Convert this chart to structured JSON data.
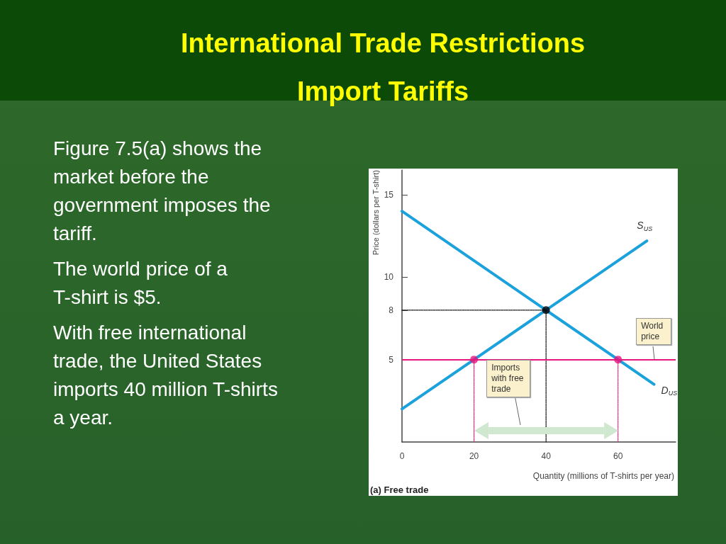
{
  "chart_data": {
    "type": "line",
    "title": "International Trade Restrictions",
    "subtitle": "Import Tariffs",
    "xlabel": "Quantity (millions of T-shirts per year)",
    "ylabel": "Price (dollars per T-shirt)",
    "xlim": [
      0,
      76
    ],
    "xticks": [
      0,
      20,
      40,
      60
    ],
    "ylim": [
      0,
      16.5
    ],
    "yticks": [
      5,
      8,
      10,
      15
    ],
    "marker": "none",
    "series": [
      {
        "name": "S$_{US}$",
        "color": "#1ba1dc",
        "x": [
          0,
          68
        ],
        "values": [
          2,
          12.2
        ]
      },
      {
        "name": "D$_{US}$",
        "color": "#1ba1dc",
        "x": [
          0,
          70
        ],
        "values": [
          14,
          3.5
        ]
      },
      {
        "color": "#e5177e",
        "line_style": "dotted",
        "x": [
          20,
          20
        ],
        "values": [
          0,
          5
        ]
      },
      {
        "color": "#e5177e",
        "line_style": "dotted",
        "x": [
          60,
          60
        ],
        "values": [
          0,
          5
        ]
      },
      {
        "color": "#000000",
        "line_style": "dotted",
        "x": [
          40,
          40
        ],
        "values": [
          0,
          8
        ]
      },
      {
        "color": "#000000",
        "line_style": "dotted",
        "x": [
          0,
          40
        ],
        "values": [
          8,
          8
        ]
      },
      {
        "type": "scatter",
        "marker": "circle",
        "x": [
          20,
          40,
          60
        ],
        "values": [
          5,
          8,
          5
        ],
        "colors": [
          "#e5177e",
          "#000000",
          "#e5177e"
        ]
      }
    ],
    "ref_lines": [
      {
        "axis": "y",
        "value": 5,
        "label": "World price",
        "color": "#e5177e"
      }
    ],
    "annotations": [
      "Figure 7.5(a) shows the\nmarket before the\ngovernment imposes the\ntariff.",
      "The world price of a\nT-shirt is $5.",
      "With free international\ntrade, the United States\nimports 40 million T-shirts\na year.",
      "Imports with free trade",
      "(a) Free trade"
    ]
  }
}
